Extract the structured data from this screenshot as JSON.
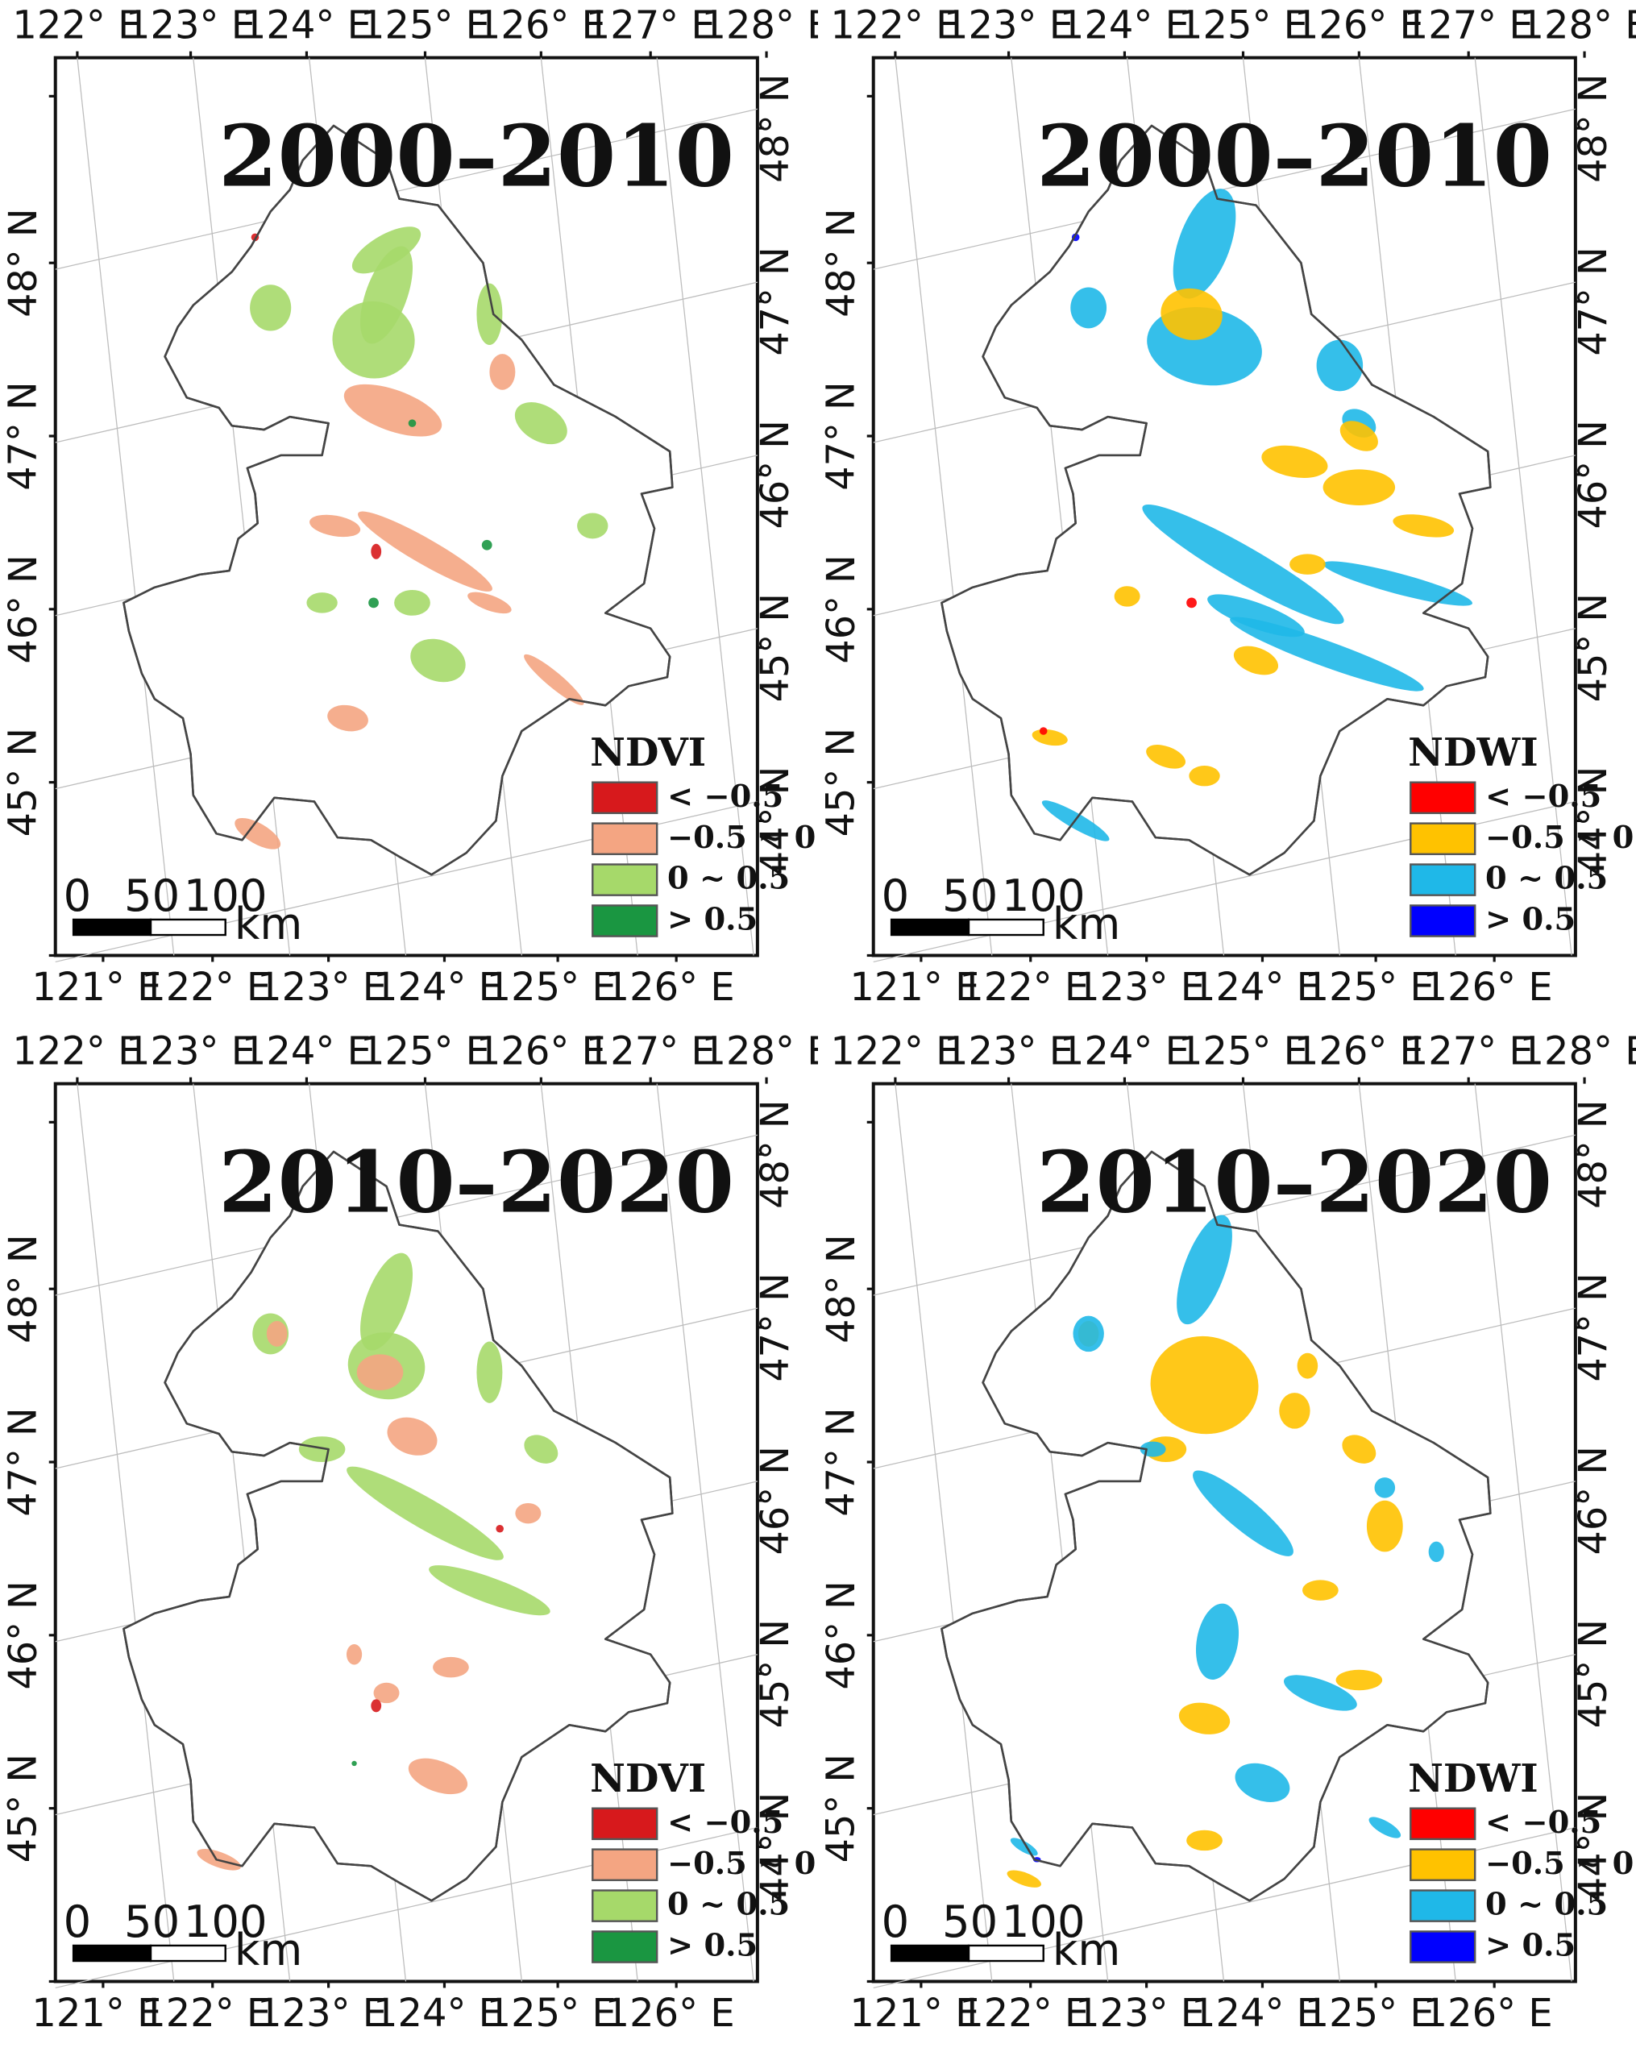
{
  "lon_top": [
    "122° E",
    "123° E",
    "124° E",
    "125° E",
    "126° E",
    "127° E",
    "128° E"
  ],
  "lon_bottom": [
    "121° E",
    "122° E",
    "123° E",
    "124° E",
    "125° E",
    "126° E"
  ],
  "lat_left": [
    "48° N",
    "47° N",
    "46° N",
    "45° N"
  ],
  "lat_right": [
    "48° N",
    "47° N",
    "46° N",
    "45° N",
    "44° N"
  ],
  "scale": {
    "zero": "0",
    "fifty": "50",
    "hundred": "100",
    "unit": "km"
  },
  "panels": [
    {
      "period": "2000–2010",
      "legend_title": "NDVI",
      "legend": [
        {
          "label": "< −0.5",
          "color": "#d7191c"
        },
        {
          "label": "−0.5 ~ 0",
          "color": "#f4a582"
        },
        {
          "label": "0 ~ 0.5",
          "color": "#a6d96a"
        },
        {
          "label": "> 0.5",
          "color": "#1a9641"
        }
      ]
    },
    {
      "period": "2000–2010",
      "legend_title": "NDWI",
      "legend": [
        {
          "label": "< −0.5",
          "color": "#ff0000"
        },
        {
          "label": "−0.5 ~ 0",
          "color": "#ffc200"
        },
        {
          "label": "0 ~ 0.5",
          "color": "#1fb8e8"
        },
        {
          "label": "> 0.5",
          "color": "#0000ff"
        }
      ]
    },
    {
      "period": "2010–2020",
      "legend_title": "NDVI",
      "legend": [
        {
          "label": "< −0.5",
          "color": "#d7191c"
        },
        {
          "label": "−0.5 ~ 0",
          "color": "#f4a582"
        },
        {
          "label": "0 ~ 0.5",
          "color": "#a6d96a"
        },
        {
          "label": "> 0.5",
          "color": "#1a9641"
        }
      ]
    },
    {
      "period": "2010–2020",
      "legend_title": "NDWI",
      "legend": [
        {
          "label": "< −0.5",
          "color": "#ff0000"
        },
        {
          "label": "−0.5 ~ 0",
          "color": "#ffc200"
        },
        {
          "label": "0 ~ 0.5",
          "color": "#1fb8e8"
        },
        {
          "label": "> 0.5",
          "color": "#0000ff"
        }
      ]
    }
  ]
}
